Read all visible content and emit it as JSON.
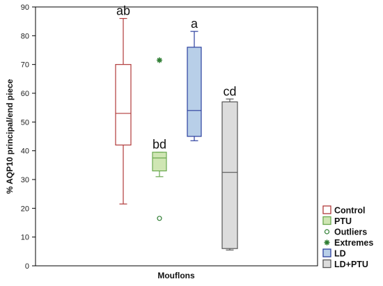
{
  "chart_data": {
    "type": "boxplot",
    "ylabel": "% AQP10 principal/end piece",
    "xlabel": "Mouflons",
    "ylim": [
      0,
      90
    ],
    "yticks": [
      0,
      10,
      20,
      30,
      40,
      50,
      60,
      70,
      80,
      90
    ],
    "grid": false,
    "legend_position": "bottom-right",
    "series": [
      {
        "name": "Control",
        "whisker_low": 21.5,
        "q1": 42,
        "median": 53,
        "q3": 70,
        "whisker_high": 86,
        "outliers": [],
        "extremes": [],
        "letter": "ab",
        "fill": "#ffffff",
        "stroke": "#b03a3a"
      },
      {
        "name": "PTU",
        "whisker_low": 31,
        "q1": 33,
        "median": 37.5,
        "q3": 39.5,
        "whisker_high": 39.5,
        "outliers": [
          16.5
        ],
        "extremes": [
          71.5
        ],
        "letter": "bd",
        "fill": "#cfe6b3",
        "stroke": "#6aa84f"
      },
      {
        "name": "LD",
        "whisker_low": 43.5,
        "q1": 45,
        "median": 54,
        "q3": 76,
        "whisker_high": 81.5,
        "outliers": [],
        "extremes": [],
        "letter": "a",
        "fill": "#b8cfe8",
        "stroke": "#2b3f9e"
      },
      {
        "name": "LD+PTU",
        "whisker_low": 5.5,
        "q1": 6,
        "median": 32.5,
        "q3": 57,
        "whisker_high": 58,
        "outliers": [],
        "extremes": [],
        "letter": "cd",
        "fill": "#dcdcdc",
        "stroke": "#555555"
      }
    ]
  },
  "legend": [
    {
      "label": "Control",
      "symbol": "box",
      "fill": "#ffffff",
      "stroke": "#b03a3a"
    },
    {
      "label": "PTU",
      "symbol": "box",
      "fill": "#cfe6b3",
      "stroke": "#6aa84f"
    },
    {
      "label": "Outliers",
      "symbol": "circle",
      "fill": "none",
      "stroke": "#2e7d32"
    },
    {
      "label": "Extremes",
      "symbol": "star",
      "fill": "#2e7d32",
      "stroke": "#2e7d32"
    },
    {
      "label": "LD",
      "symbol": "box",
      "fill": "#b8cfe8",
      "stroke": "#2b3f9e"
    },
    {
      "label": "LD+PTU",
      "symbol": "box",
      "fill": "#dcdcdc",
      "stroke": "#555555"
    }
  ]
}
